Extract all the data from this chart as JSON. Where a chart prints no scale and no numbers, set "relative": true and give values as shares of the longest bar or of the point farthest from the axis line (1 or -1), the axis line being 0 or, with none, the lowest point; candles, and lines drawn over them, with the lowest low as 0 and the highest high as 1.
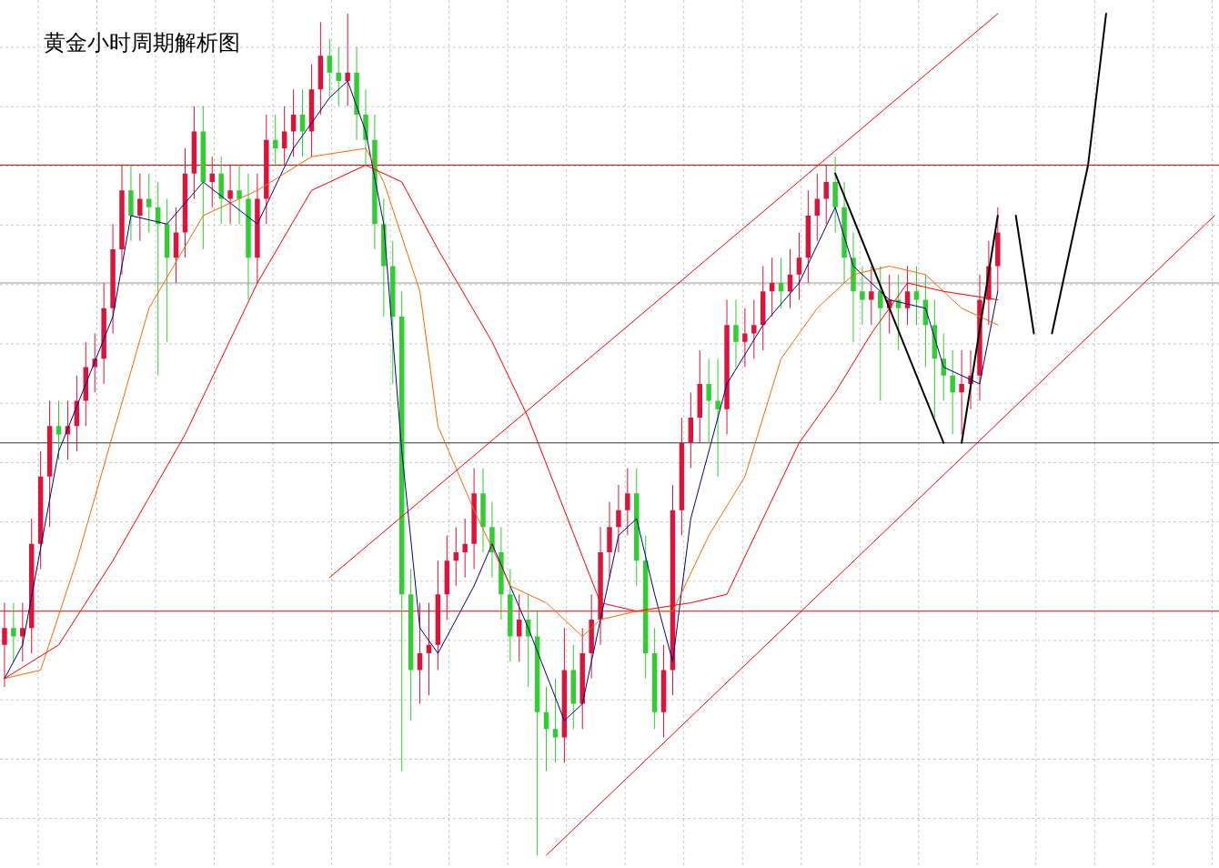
{
  "chart_data": [
    {
      "type": "candlestick",
      "title": "黄金小时周期解析图",
      "relative": true,
      "grid": true,
      "categories": [
        null,
        null,
        null,
        null,
        null,
        null,
        null,
        null,
        null,
        null,
        null,
        null,
        null,
        null,
        null,
        null,
        null,
        null,
        null,
        null,
        null,
        null,
        null,
        null,
        null,
        null,
        null,
        null,
        null,
        null,
        null,
        null,
        null,
        null,
        null,
        null,
        null,
        null,
        null,
        null,
        null,
        null,
        null,
        null,
        null,
        null,
        null,
        null,
        null,
        null,
        null,
        null,
        null,
        null,
        null,
        null,
        null,
        null,
        null,
        null,
        null,
        null,
        null,
        null,
        null,
        null,
        null,
        null,
        null,
        null,
        null,
        null,
        null,
        null,
        null,
        null,
        null,
        null,
        null,
        null,
        null,
        null,
        null,
        null,
        null,
        null,
        null,
        null,
        null,
        null,
        null,
        null,
        null,
        null,
        null,
        null,
        null,
        null,
        null,
        null,
        null,
        null,
        null,
        null,
        null,
        null,
        null,
        null,
        null,
        null,
        null
      ],
      "ohlc": [
        [
          0.25,
          0.3,
          0.2,
          0.27
        ],
        [
          0.27,
          0.3,
          0.23,
          0.26
        ],
        [
          0.26,
          0.3,
          0.23,
          0.27
        ],
        [
          0.27,
          0.4,
          0.24,
          0.37
        ],
        [
          0.37,
          0.48,
          0.34,
          0.45
        ],
        [
          0.45,
          0.54,
          0.39,
          0.51
        ],
        [
          0.51,
          0.54,
          0.47,
          0.5
        ],
        [
          0.5,
          0.54,
          0.47,
          0.51
        ],
        [
          0.51,
          0.57,
          0.48,
          0.54
        ],
        [
          0.54,
          0.61,
          0.51,
          0.58
        ],
        [
          0.58,
          0.62,
          0.55,
          0.59
        ],
        [
          0.59,
          0.68,
          0.56,
          0.65
        ],
        [
          0.65,
          0.75,
          0.62,
          0.72
        ],
        [
          0.72,
          0.82,
          0.69,
          0.79
        ],
        [
          0.79,
          0.82,
          0.73,
          0.76
        ],
        [
          0.76,
          0.81,
          0.73,
          0.78
        ],
        [
          0.78,
          0.81,
          0.74,
          0.77
        ],
        [
          0.77,
          0.8,
          0.57,
          0.75
        ],
        [
          0.75,
          0.78,
          0.61,
          0.71
        ],
        [
          0.71,
          0.77,
          0.68,
          0.74
        ],
        [
          0.74,
          0.84,
          0.71,
          0.81
        ],
        [
          0.81,
          0.89,
          0.78,
          0.86
        ],
        [
          0.86,
          0.89,
          0.72,
          0.8
        ],
        [
          0.8,
          0.83,
          0.77,
          0.81
        ],
        [
          0.81,
          0.83,
          0.75,
          0.78
        ],
        [
          0.78,
          0.82,
          0.75,
          0.79
        ],
        [
          0.79,
          0.82,
          0.75,
          0.78
        ],
        [
          0.78,
          0.81,
          0.66,
          0.71
        ],
        [
          0.71,
          0.81,
          0.68,
          0.78
        ],
        [
          0.78,
          0.88,
          0.75,
          0.85
        ],
        [
          0.85,
          0.88,
          0.82,
          0.84
        ],
        [
          0.84,
          0.89,
          0.82,
          0.86
        ],
        [
          0.86,
          0.91,
          0.83,
          0.88
        ],
        [
          0.88,
          0.91,
          0.83,
          0.86
        ],
        [
          0.86,
          0.94,
          0.83,
          0.91
        ],
        [
          0.91,
          0.99,
          0.88,
          0.95
        ],
        [
          0.95,
          0.97,
          0.9,
          0.93
        ],
        [
          0.93,
          0.96,
          0.89,
          0.92
        ],
        [
          0.92,
          1.0,
          0.89,
          0.93
        ],
        [
          0.93,
          0.96,
          0.85,
          0.88
        ],
        [
          0.88,
          0.91,
          0.82,
          0.85
        ],
        [
          0.85,
          0.88,
          0.72,
          0.75
        ],
        [
          0.75,
          0.78,
          0.64,
          0.7
        ],
        [
          0.7,
          0.73,
          0.56,
          0.64
        ],
        [
          0.64,
          0.67,
          0.1,
          0.31
        ],
        [
          0.31,
          0.34,
          0.16,
          0.22
        ],
        [
          0.22,
          0.3,
          0.18,
          0.24
        ],
        [
          0.24,
          0.3,
          0.19,
          0.25
        ],
        [
          0.25,
          0.35,
          0.22,
          0.31
        ],
        [
          0.31,
          0.38,
          0.28,
          0.35
        ],
        [
          0.35,
          0.39,
          0.32,
          0.36
        ],
        [
          0.36,
          0.4,
          0.33,
          0.37
        ],
        [
          0.37,
          0.46,
          0.34,
          0.43
        ],
        [
          0.43,
          0.46,
          0.36,
          0.39
        ],
        [
          0.39,
          0.42,
          0.33,
          0.36
        ],
        [
          0.36,
          0.39,
          0.28,
          0.31
        ],
        [
          0.31,
          0.34,
          0.23,
          0.26
        ],
        [
          0.26,
          0.31,
          0.23,
          0.28
        ],
        [
          0.28,
          0.31,
          0.2,
          0.26
        ],
        [
          0.26,
          0.29,
          0.0,
          0.17
        ],
        [
          0.17,
          0.2,
          0.1,
          0.15
        ],
        [
          0.15,
          0.21,
          0.11,
          0.14
        ],
        [
          0.14,
          0.27,
          0.11,
          0.22
        ],
        [
          0.22,
          0.25,
          0.15,
          0.18
        ],
        [
          0.18,
          0.27,
          0.15,
          0.24
        ],
        [
          0.24,
          0.31,
          0.21,
          0.28
        ],
        [
          0.28,
          0.39,
          0.25,
          0.36
        ],
        [
          0.36,
          0.42,
          0.33,
          0.39
        ],
        [
          0.39,
          0.44,
          0.36,
          0.41
        ],
        [
          0.41,
          0.46,
          0.38,
          0.43
        ],
        [
          0.43,
          0.46,
          0.32,
          0.35
        ],
        [
          0.35,
          0.38,
          0.21,
          0.24
        ],
        [
          0.24,
          0.27,
          0.15,
          0.17
        ],
        [
          0.17,
          0.25,
          0.14,
          0.22
        ],
        [
          0.22,
          0.44,
          0.19,
          0.41
        ],
        [
          0.41,
          0.52,
          0.38,
          0.49
        ],
        [
          0.49,
          0.55,
          0.46,
          0.52
        ],
        [
          0.52,
          0.6,
          0.49,
          0.56
        ],
        [
          0.56,
          0.59,
          0.49,
          0.54
        ],
        [
          0.54,
          0.59,
          0.45,
          0.53
        ],
        [
          0.53,
          0.66,
          0.5,
          0.63
        ],
        [
          0.63,
          0.66,
          0.58,
          0.61
        ],
        [
          0.61,
          0.65,
          0.58,
          0.62
        ],
        [
          0.62,
          0.66,
          0.59,
          0.63
        ],
        [
          0.63,
          0.7,
          0.6,
          0.67
        ],
        [
          0.67,
          0.71,
          0.64,
          0.68
        ],
        [
          0.68,
          0.71,
          0.65,
          0.67
        ],
        [
          0.67,
          0.72,
          0.65,
          0.69
        ],
        [
          0.69,
          0.74,
          0.66,
          0.71
        ],
        [
          0.71,
          0.79,
          0.68,
          0.76
        ],
        [
          0.76,
          0.81,
          0.73,
          0.78
        ],
        [
          0.78,
          0.82,
          0.75,
          0.8
        ],
        [
          0.8,
          0.83,
          0.74,
          0.77
        ],
        [
          0.77,
          0.8,
          0.68,
          0.71
        ],
        [
          0.71,
          0.74,
          0.61,
          0.67
        ],
        [
          0.67,
          0.7,
          0.63,
          0.66
        ],
        [
          0.66,
          0.7,
          0.63,
          0.67
        ],
        [
          0.67,
          0.7,
          0.54,
          0.65
        ],
        [
          0.65,
          0.69,
          0.62,
          0.66
        ],
        [
          0.66,
          0.69,
          0.6,
          0.65
        ],
        [
          0.65,
          0.7,
          0.63,
          0.67
        ],
        [
          0.67,
          0.7,
          0.63,
          0.66
        ],
        [
          0.66,
          0.69,
          0.58,
          0.63
        ],
        [
          0.63,
          0.66,
          0.52,
          0.59
        ],
        [
          0.59,
          0.62,
          0.54,
          0.57
        ],
        [
          0.57,
          0.6,
          0.5,
          0.55
        ],
        [
          0.55,
          0.6,
          0.5,
          0.56
        ],
        [
          0.56,
          0.6,
          0.53,
          0.57
        ],
        [
          0.57,
          0.69,
          0.54,
          0.66
        ],
        [
          0.66,
          0.73,
          0.63,
          0.7
        ],
        [
          0.7,
          0.77,
          0.67,
          0.74
        ]
      ],
      "ref_lines": [
        {
          "axis": "y",
          "value": 0.82,
          "color": "#ff0000"
        },
        {
          "axis": "y",
          "value": 0.68,
          "color": "#999999"
        },
        {
          "axis": "y",
          "value": 0.49,
          "color": "#333333"
        },
        {
          "axis": "y",
          "value": 0.29,
          "color": "#ff0000"
        }
      ]
    },
    {
      "type": "line",
      "relative": true,
      "categories": [
        null,
        null,
        null,
        null,
        null,
        null,
        null,
        null,
        null,
        null,
        null,
        null,
        null,
        null,
        null,
        null,
        null,
        null,
        null,
        null,
        null,
        null,
        null,
        null,
        null,
        null,
        null,
        null,
        null,
        null,
        null,
        null,
        null,
        null,
        null,
        null,
        null,
        null,
        null,
        null,
        null,
        null,
        null,
        null,
        null,
        null,
        null,
        null,
        null,
        null,
        null,
        null,
        null,
        null,
        null,
        null,
        null,
        null,
        null,
        null,
        null,
        null,
        null,
        null,
        null,
        null,
        null,
        null
      ],
      "series": [
        {
          "color": "#000080",
          "values": [
            0.21,
            0.25,
            null,
            0.48,
            null,
            null,
            0.64,
            0.76,
            null,
            0.75,
            null,
            0.8,
            null,
            null,
            0.75,
            null,
            0.84,
            null,
            0.9,
            0.92,
            0.86,
            0.75,
            0.48,
            0.27,
            0.24,
            null,
            0.32,
            0.37,
            null,
            0.27,
            null,
            0.16,
            0.18,
            null,
            0.38,
            0.4,
            0.31,
            0.23,
            0.4,
            null,
            0.56,
            null,
            0.63,
            null,
            0.68,
            null,
            0.77,
            0.7,
            null,
            0.66,
            null,
            0.65,
            0.58,
            null,
            0.56,
            0.67,
            null,
            null,
            null,
            null,
            null,
            null,
            null,
            null,
            null,
            null,
            null,
            null
          ]
        },
        {
          "color": "#ff6600",
          "values": [
            0.21,
            null,
            0.22,
            null,
            0.35,
            null,
            0.5,
            null,
            0.65,
            null,
            null,
            0.76,
            null,
            null,
            0.79,
            null,
            null,
            0.83,
            null,
            null,
            0.84,
            0.8,
            null,
            0.67,
            0.51,
            null,
            0.41,
            null,
            0.32,
            null,
            0.3,
            null,
            0.26,
            0.28,
            null,
            0.29,
            null,
            0.29,
            null,
            0.38,
            null,
            0.45,
            null,
            0.59,
            null,
            0.65,
            null,
            0.69,
            null,
            0.7,
            null,
            0.69,
            null,
            0.65,
            null,
            0.63,
            null,
            null,
            null,
            null,
            null,
            null,
            null,
            null,
            null,
            null,
            null,
            null
          ]
        },
        {
          "color": "#ff0000",
          "values": [
            0.21,
            null,
            null,
            0.25,
            null,
            null,
            0.35,
            null,
            null,
            null,
            0.5,
            null,
            null,
            null,
            0.68,
            null,
            null,
            0.79,
            null,
            null,
            0.82,
            null,
            0.8,
            null,
            0.72,
            null,
            null,
            0.61,
            null,
            0.52,
            null,
            0.41,
            null,
            0.3,
            null,
            0.29,
            null,
            null,
            0.3,
            null,
            0.31,
            null,
            0.4,
            null,
            0.49,
            null,
            0.55,
            null,
            0.62,
            null,
            0.68,
            null,
            0.67,
            null,
            null,
            0.66,
            null,
            null,
            null,
            null,
            null,
            null,
            null,
            null,
            null,
            null,
            null,
            null
          ]
        },
        {
          "color": "#ff0000",
          "values": [
            null,
            null,
            null,
            null,
            null,
            null,
            null,
            null,
            null,
            null,
            null,
            null,
            null,
            null,
            null,
            null,
            null,
            null,
            0.33,
            null,
            null,
            null,
            null,
            null,
            null,
            null,
            null,
            null,
            null,
            null,
            null,
            null,
            null,
            null,
            null,
            null,
            null,
            null,
            null,
            null,
            null,
            null,
            null,
            null,
            null,
            null,
            null,
            null,
            null,
            null,
            null,
            null,
            null,
            null,
            null,
            1.0,
            null,
            null,
            null,
            null,
            null,
            null,
            null,
            null,
            null,
            null,
            null,
            null
          ]
        },
        {
          "color": "#ff0000",
          "values": [
            null,
            null,
            null,
            null,
            null,
            null,
            null,
            null,
            null,
            null,
            null,
            null,
            null,
            null,
            null,
            null,
            null,
            null,
            null,
            null,
            null,
            null,
            null,
            null,
            null,
            null,
            null,
            null,
            null,
            null,
            0.0,
            null,
            null,
            null,
            null,
            null,
            null,
            null,
            null,
            null,
            null,
            null,
            null,
            null,
            null,
            null,
            null,
            null,
            null,
            null,
            null,
            null,
            null,
            null,
            null,
            null,
            null,
            null,
            null,
            null,
            null,
            null,
            null,
            null,
            null,
            null,
            null,
            0.76
          ]
        },
        {
          "color": "#000000",
          "values": [
            null,
            null,
            null,
            null,
            null,
            null,
            null,
            null,
            null,
            null,
            null,
            null,
            null,
            null,
            null,
            null,
            null,
            null,
            null,
            null,
            null,
            null,
            null,
            null,
            null,
            null,
            null,
            null,
            null,
            null,
            null,
            null,
            null,
            null,
            null,
            null,
            null,
            null,
            null,
            null,
            null,
            null,
            null,
            null,
            null,
            null,
            0.81,
            null,
            null,
            null,
            null,
            null,
            0.49,
            null,
            null,
            null,
            null,
            null,
            null,
            null,
            null,
            null,
            null,
            null,
            null,
            null,
            null,
            null
          ]
        },
        {
          "color": "#000000",
          "values": [
            null,
            null,
            null,
            null,
            null,
            null,
            null,
            null,
            null,
            null,
            null,
            null,
            null,
            null,
            null,
            null,
            null,
            null,
            null,
            null,
            null,
            null,
            null,
            null,
            null,
            null,
            null,
            null,
            null,
            null,
            null,
            null,
            null,
            null,
            null,
            null,
            null,
            null,
            null,
            null,
            null,
            null,
            null,
            null,
            null,
            null,
            null,
            null,
            null,
            null,
            null,
            null,
            null,
            0.49,
            null,
            0.76,
            null,
            null,
            null,
            null,
            null,
            null,
            null,
            null,
            null,
            null,
            null,
            null
          ]
        },
        {
          "color": "#000000",
          "values": [
            null,
            null,
            null,
            null,
            null,
            null,
            null,
            null,
            null,
            null,
            null,
            null,
            null,
            null,
            null,
            null,
            null,
            null,
            null,
            null,
            null,
            null,
            null,
            null,
            null,
            null,
            null,
            null,
            null,
            null,
            null,
            null,
            null,
            null,
            null,
            null,
            null,
            null,
            null,
            null,
            null,
            null,
            null,
            null,
            null,
            null,
            null,
            null,
            null,
            null,
            null,
            null,
            null,
            null,
            null,
            null,
            0.76,
            0.62,
            null,
            null,
            null,
            null,
            null,
            null,
            null,
            null,
            null,
            null
          ]
        },
        {
          "color": "#000000",
          "values": [
            null,
            null,
            null,
            null,
            null,
            null,
            null,
            null,
            null,
            null,
            null,
            null,
            null,
            null,
            null,
            null,
            null,
            null,
            null,
            null,
            null,
            null,
            null,
            null,
            null,
            null,
            null,
            null,
            null,
            null,
            null,
            null,
            null,
            null,
            null,
            null,
            null,
            null,
            null,
            null,
            null,
            null,
            null,
            null,
            null,
            null,
            null,
            null,
            null,
            null,
            null,
            null,
            null,
            null,
            null,
            null,
            null,
            null,
            0.62,
            null,
            0.82,
            1.0,
            null,
            null,
            null,
            null,
            null,
            null
          ]
        }
      ]
    }
  ]
}
